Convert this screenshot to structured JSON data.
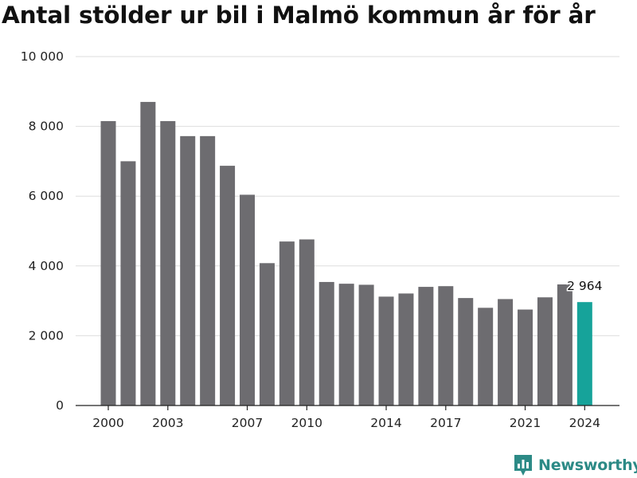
{
  "chart_data": {
    "type": "bar",
    "title": "Antal stölder ur bil i Malmö kommun år för år",
    "xlabel": "",
    "ylabel": "",
    "categories": [
      "2000",
      "2001",
      "2002",
      "2003",
      "2004",
      "2005",
      "2006",
      "2007",
      "2008",
      "2009",
      "2010",
      "2011",
      "2012",
      "2013",
      "2014",
      "2015",
      "2016",
      "2017",
      "2018",
      "2019",
      "2020",
      "2021",
      "2022",
      "2023",
      "2024"
    ],
    "values": [
      8150,
      7000,
      8700,
      8150,
      7720,
      7720,
      6870,
      6040,
      4080,
      4700,
      4760,
      3540,
      3490,
      3460,
      3120,
      3210,
      3400,
      3420,
      3080,
      2800,
      3050,
      2750,
      3100,
      3470,
      2964
    ],
    "x_tick_labels": [
      "2000",
      "2003",
      "2007",
      "2010",
      "2014",
      "2017",
      "2021",
      "2024"
    ],
    "y_tick_labels": [
      "0",
      "2 000",
      "4 000",
      "6 000",
      "8 000",
      "10 000"
    ],
    "y_ticks": [
      0,
      2000,
      4000,
      6000,
      8000,
      10000
    ],
    "ylim": [
      0,
      10000
    ],
    "grid": true,
    "bar_color": "#6d6c70",
    "highlight_color": "#16a39a",
    "highlight_index": 24,
    "annotation": {
      "index": 24,
      "text": "2 964"
    }
  },
  "branding": {
    "name": "Newsworthy",
    "color": "#2c8a86"
  }
}
